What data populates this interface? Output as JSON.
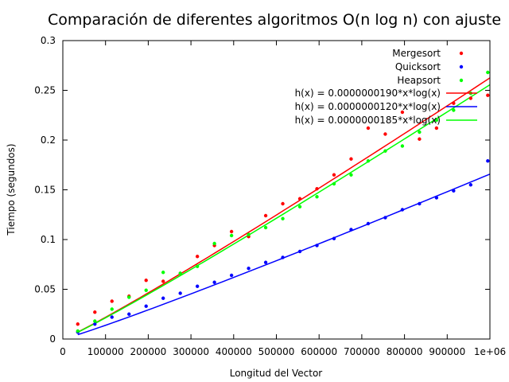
{
  "chart_data": {
    "type": "scatter",
    "title": "Comparación de diferentes algoritmos O(n log n) con ajuste",
    "xlabel": "Longitud del Vector",
    "ylabel": "Tiempo (segundos)",
    "xlim": [
      0,
      1000000
    ],
    "ylim": [
      0,
      0.3
    ],
    "x_ticks": [
      0,
      100000,
      200000,
      300000,
      400000,
      500000,
      600000,
      700000,
      800000,
      900000,
      1000000
    ],
    "x_tick_labels": [
      "0",
      "100000",
      "200000",
      "300000",
      "400000",
      "500000",
      "600000",
      "700000",
      "800000",
      "900000",
      "1e+06"
    ],
    "y_ticks": [
      0,
      0.05,
      0.1,
      0.15,
      0.2,
      0.25,
      0.3
    ],
    "y_tick_labels": [
      "0",
      "0.05",
      "0.1",
      "0.15",
      "0.2",
      "0.25",
      "0.3"
    ],
    "grid": false,
    "legend_position": "top-right",
    "x": [
      35000,
      75000,
      115000,
      155000,
      195000,
      235000,
      275000,
      315000,
      355000,
      395000,
      435000,
      475000,
      515000,
      555000,
      595000,
      635000,
      675000,
      715000,
      755000,
      795000,
      835000,
      875000,
      915000,
      955000,
      995000
    ],
    "series": [
      {
        "name": "Mergesort",
        "color": "#ff0000",
        "values": [
          0.015,
          0.027,
          0.038,
          0.043,
          0.059,
          0.058,
          0.066,
          0.083,
          0.094,
          0.108,
          0.103,
          0.124,
          0.136,
          0.141,
          0.151,
          0.165,
          0.181,
          0.212,
          0.206,
          0.228,
          0.201,
          0.212,
          0.237,
          0.242,
          0.245
        ]
      },
      {
        "name": "Quicksort",
        "color": "#0000ff",
        "values": [
          0.007,
          0.015,
          0.022,
          0.025,
          0.033,
          0.041,
          0.046,
          0.053,
          0.057,
          0.064,
          0.071,
          0.077,
          0.082,
          0.088,
          0.094,
          0.101,
          0.11,
          0.116,
          0.122,
          0.13,
          0.136,
          0.142,
          0.149,
          0.155,
          0.179
        ]
      },
      {
        "name": "Heapsort",
        "color": "#00ff00",
        "values": [
          0.008,
          0.018,
          0.03,
          0.042,
          0.049,
          0.067,
          0.066,
          0.073,
          0.096,
          0.104,
          0.105,
          0.112,
          0.121,
          0.133,
          0.143,
          0.156,
          0.165,
          0.179,
          0.189,
          0.194,
          0.208,
          0.22,
          0.23,
          0.247,
          0.268
        ]
      }
    ],
    "fits": [
      {
        "name": "h(x) = 0.0000000190*x*log(x)",
        "coef": 1.9e-08,
        "color": "#ff0000"
      },
      {
        "name": "h(x) = 0.0000000120*x*log(x)",
        "coef": 1.2e-08,
        "color": "#0000ff"
      },
      {
        "name": "h(x) = 0.0000000185*x*log(x)",
        "coef": 1.85e-08,
        "color": "#00ff00"
      }
    ],
    "fit_x_range": [
      35000,
      1000000
    ]
  }
}
